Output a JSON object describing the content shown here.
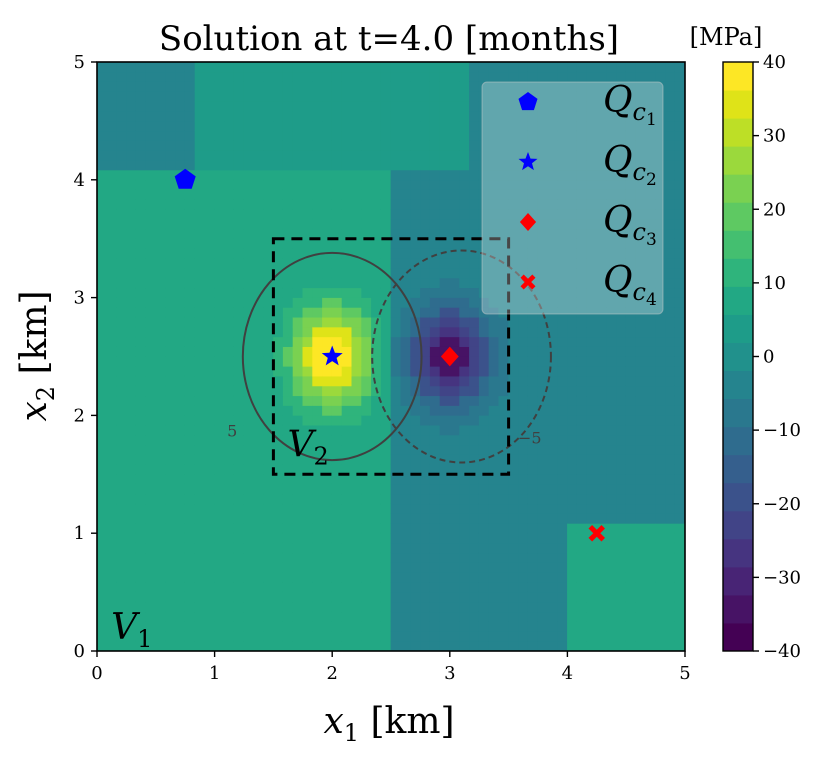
{
  "chart_data": {
    "type": "contour",
    "title": "Solution at t=4.0 [months]",
    "xlabel": "x_1 [km]",
    "xlabel_var": "x",
    "xlabel_sub": "1",
    "xlabel_unit": " [km]",
    "ylabel": "x_2 [km]",
    "ylabel_var": "x",
    "ylabel_sub": "2",
    "ylabel_unit": " [km]",
    "xlim": [
      0,
      5
    ],
    "ylim": [
      0,
      5
    ],
    "xticks": [
      0,
      1,
      2,
      3,
      4,
      5
    ],
    "yticks": [
      0,
      1,
      2,
      3,
      4,
      5
    ],
    "colorbar": {
      "label": "[MPa]",
      "min": -40,
      "max": 40,
      "levels": [
        -40,
        -35,
        -30,
        -25,
        -20,
        -15,
        -10,
        -5,
        0,
        5,
        10,
        15,
        20,
        25,
        30,
        35,
        40
      ],
      "tick_values": [
        40,
        30,
        20,
        10,
        0,
        -10,
        -20,
        -30,
        -40
      ],
      "tick_labels": [
        "40",
        "30",
        "20",
        "10",
        "0",
        "−10",
        "−20",
        "−30",
        "−40"
      ],
      "colors": [
        "#440154",
        "#471365",
        "#482475",
        "#463480",
        "#414487",
        "#3b528b",
        "#355f8d",
        "#2f6c8e",
        "#2a788e",
        "#25848e",
        "#21918c",
        "#1e9c89",
        "#22a884",
        "#2fb47c",
        "#44bf70",
        "#5ec962",
        "#7ad151",
        "#9bd93c",
        "#bddf26",
        "#dfe318",
        "#fde725"
      ]
    },
    "sources": [
      {
        "name": "positive",
        "x": 2.0,
        "y": 2.5,
        "peak": 37
      },
      {
        "name": "negative",
        "x": 3.0,
        "y": 2.5,
        "peak": -33
      }
    ],
    "contour_lines": [
      {
        "level": 5,
        "center": [
          2.0,
          2.5
        ],
        "rx": 0.76,
        "ry": 0.88,
        "label": "5",
        "label_at": [
          1.15,
          1.82
        ],
        "style": "solid"
      },
      {
        "level": -5,
        "center": [
          3.1,
          2.5
        ],
        "rx": 0.76,
        "ry": 0.9,
        "label": "−5",
        "label_at": [
          3.68,
          1.76
        ],
        "style": "dashed"
      }
    ],
    "subdomains": [
      {
        "name": "V_1",
        "var": "V",
        "sub": "1",
        "label_at": [
          0.12,
          0.1
        ],
        "x": [
          0,
          5
        ],
        "y": [
          0,
          5
        ]
      },
      {
        "name": "V_2",
        "var": "V",
        "sub": "2",
        "label_at": [
          1.62,
          1.65
        ],
        "x": [
          1.5,
          3.5
        ],
        "y": [
          1.5,
          3.5
        ]
      }
    ],
    "points": [
      {
        "name": "Q_c1",
        "var": "Q",
        "sub": "c",
        "subsub": "1",
        "marker": "pentagon",
        "color": "#0000ff",
        "x": 0.75,
        "y": 4.0
      },
      {
        "name": "Q_c2",
        "var": "Q",
        "sub": "c",
        "subsub": "2",
        "marker": "star",
        "color": "#0000ff",
        "x": 2.0,
        "y": 2.5
      },
      {
        "name": "Q_c3",
        "var": "Q",
        "sub": "c",
        "subsub": "3",
        "marker": "diamond",
        "color": "#ff0000",
        "x": 3.0,
        "y": 2.5
      },
      {
        "name": "Q_c4",
        "var": "Q",
        "sub": "c",
        "subsub": "4",
        "marker": "x",
        "color": "#ff0000",
        "x": 4.25,
        "y": 1.0
      }
    ],
    "legend_position": "top-right"
  }
}
